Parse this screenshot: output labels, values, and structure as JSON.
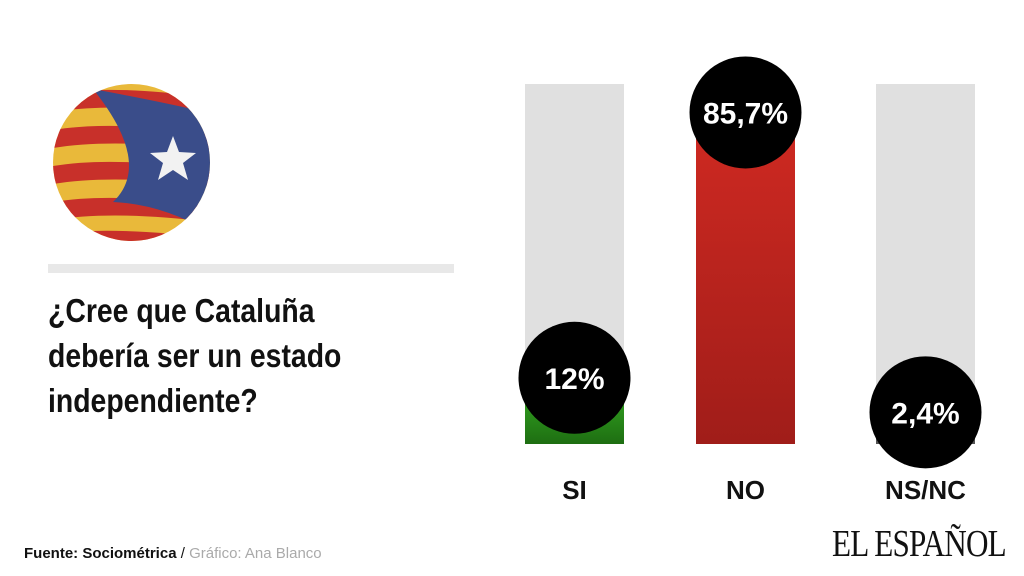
{
  "question": "¿Cree que Cataluña debería ser un estado independiente?",
  "footer": {
    "source_label": "Fuente: Sociométrica",
    "separator": "/",
    "credit": "Gráfico: Ana Blanco"
  },
  "logo": "EL ESPAÑOL",
  "chart_data": {
    "type": "bar",
    "categories": [
      "SI",
      "NO",
      "NS/NC"
    ],
    "values": [
      12,
      85.7,
      2.4
    ],
    "value_labels": [
      "12%",
      "85,7%",
      "2,4%"
    ],
    "ylim": [
      0,
      100
    ],
    "colors": {
      "SI": "#2a8a1a",
      "NO": "#c4261f",
      "NS/NC": "#555555",
      "track": "#e0e0e0",
      "bubble": "#000000"
    },
    "grid": false
  }
}
